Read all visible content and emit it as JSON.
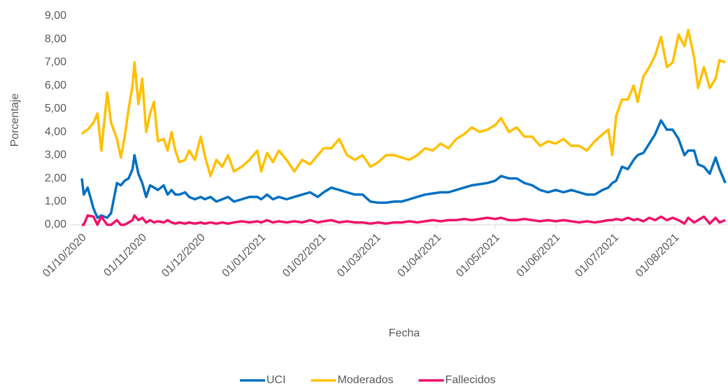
{
  "chart_data": {
    "type": "line",
    "x_label": "Fecha",
    "y_label": "Porcentaje",
    "x": [
      "01/10/2020",
      "02/10/2020",
      "04/10/2020",
      "07/10/2020",
      "09/10/2020",
      "11/10/2020",
      "14/10/2020",
      "16/10/2020",
      "19/10/2020",
      "21/10/2020",
      "23/10/2020",
      "25/10/2020",
      "27/10/2020",
      "28/10/2020",
      "30/10/2020",
      "01/11/2020",
      "03/11/2020",
      "05/11/2020",
      "07/11/2020",
      "09/11/2020",
      "12/11/2020",
      "14/11/2020",
      "16/11/2020",
      "18/11/2020",
      "20/11/2020",
      "23/11/2020",
      "25/11/2020",
      "28/11/2020",
      "01/12/2020",
      "03/12/2020",
      "06/12/2020",
      "09/12/2020",
      "12/12/2020",
      "15/12/2020",
      "18/12/2020",
      "22/12/2020",
      "26/12/2020",
      "30/12/2020",
      "01/01/2021",
      "04/01/2021",
      "07/01/2021",
      "10/01/2021",
      "14/01/2021",
      "18/01/2021",
      "22/01/2021",
      "26/01/2021",
      "30/01/2021",
      "02/02/2021",
      "06/02/2021",
      "10/02/2021",
      "14/02/2021",
      "18/02/2021",
      "22/02/2021",
      "26/02/2021",
      "02/03/2021",
      "06/03/2021",
      "10/03/2021",
      "14/03/2021",
      "18/03/2021",
      "22/03/2021",
      "26/03/2021",
      "30/03/2021",
      "03/04/2021",
      "07/04/2021",
      "11/04/2021",
      "15/04/2021",
      "19/04/2021",
      "23/04/2021",
      "27/04/2021",
      "01/05/2021",
      "04/05/2021",
      "08/05/2021",
      "12/05/2021",
      "16/05/2021",
      "20/05/2021",
      "24/05/2021",
      "28/05/2021",
      "01/06/2021",
      "05/06/2021",
      "09/06/2021",
      "13/06/2021",
      "17/06/2021",
      "21/06/2021",
      "25/06/2021",
      "28/06/2021",
      "30/06/2021",
      "02/07/2021",
      "05/07/2021",
      "08/07/2021",
      "11/07/2021",
      "13/07/2021",
      "16/07/2021",
      "19/07/2021",
      "22/07/2021",
      "25/07/2021",
      "28/07/2021",
      "31/07/2021",
      "03/08/2021",
      "06/08/2021",
      "08/08/2021",
      "11/08/2021",
      "13/08/2021",
      "16/08/2021",
      "19/08/2021",
      "22/08/2021",
      "24/08/2021",
      "27/08/2021"
    ],
    "series": [
      {
        "name": "UCI",
        "color": "#0070c0",
        "values": [
          2.0,
          1.3,
          1.6,
          0.7,
          0.3,
          0.4,
          0.3,
          0.5,
          1.8,
          1.7,
          1.9,
          2.0,
          2.4,
          3.0,
          2.2,
          1.8,
          1.2,
          1.7,
          1.6,
          1.5,
          1.7,
          1.3,
          1.5,
          1.3,
          1.3,
          1.4,
          1.2,
          1.1,
          1.2,
          1.1,
          1.2,
          1.0,
          1.1,
          1.2,
          1.0,
          1.1,
          1.2,
          1.2,
          1.1,
          1.3,
          1.1,
          1.2,
          1.1,
          1.2,
          1.3,
          1.4,
          1.2,
          1.4,
          1.6,
          1.5,
          1.4,
          1.3,
          1.3,
          1.0,
          0.95,
          0.95,
          1.0,
          1.0,
          1.1,
          1.2,
          1.3,
          1.35,
          1.4,
          1.4,
          1.5,
          1.6,
          1.7,
          1.75,
          1.8,
          1.9,
          2.1,
          2.0,
          2.0,
          1.8,
          1.7,
          1.5,
          1.4,
          1.5,
          1.4,
          1.5,
          1.4,
          1.3,
          1.3,
          1.5,
          1.6,
          1.8,
          1.9,
          2.5,
          2.4,
          2.8,
          3.0,
          3.1,
          3.5,
          3.9,
          4.5,
          4.1,
          4.1,
          3.7,
          3.0,
          3.2,
          3.2,
          2.6,
          2.5,
          2.2,
          2.9,
          2.4,
          1.8
        ]
      },
      {
        "name": "Moderados",
        "color": "#ffc000",
        "values": [
          3.9,
          4.0,
          4.1,
          4.4,
          4.8,
          3.2,
          5.7,
          4.4,
          3.7,
          2.9,
          3.8,
          5.0,
          6.0,
          7.0,
          5.2,
          6.3,
          4.0,
          4.8,
          5.3,
          3.6,
          3.7,
          3.2,
          4.0,
          3.2,
          2.7,
          2.8,
          3.2,
          2.8,
          3.8,
          3.0,
          2.1,
          2.8,
          2.5,
          3.0,
          2.3,
          2.5,
          2.8,
          3.2,
          2.3,
          3.1,
          2.7,
          3.2,
          2.8,
          2.3,
          2.8,
          2.6,
          3.0,
          3.3,
          3.3,
          3.7,
          3.0,
          2.8,
          3.0,
          2.5,
          2.7,
          3.0,
          3.0,
          2.9,
          2.8,
          3.0,
          3.3,
          3.2,
          3.5,
          3.3,
          3.7,
          3.9,
          4.2,
          4.0,
          4.1,
          4.3,
          4.6,
          4.0,
          4.2,
          3.8,
          3.8,
          3.4,
          3.6,
          3.5,
          3.7,
          3.4,
          3.4,
          3.2,
          3.6,
          3.9,
          4.1,
          3.0,
          4.7,
          5.4,
          5.4,
          6.0,
          5.3,
          6.4,
          6.8,
          7.3,
          8.1,
          6.8,
          7.0,
          8.2,
          7.7,
          8.4,
          7.2,
          5.9,
          6.8,
          5.9,
          6.3,
          7.1,
          7.0
        ]
      },
      {
        "name": "Fallecidos",
        "color": "#f0106a",
        "values": [
          0,
          0,
          0.4,
          0.35,
          0,
          0.35,
          0,
          0,
          0.2,
          0,
          0,
          0.1,
          0.2,
          0.4,
          0.2,
          0.3,
          0.1,
          0.2,
          0.1,
          0.15,
          0.1,
          0.2,
          0.1,
          0.05,
          0.1,
          0.05,
          0.1,
          0.05,
          0.1,
          0.05,
          0.1,
          0.05,
          0.1,
          0.05,
          0.1,
          0.15,
          0.1,
          0.15,
          0.1,
          0.2,
          0.1,
          0.15,
          0.1,
          0.15,
          0.1,
          0.2,
          0.1,
          0.15,
          0.2,
          0.1,
          0.15,
          0.1,
          0.1,
          0.05,
          0.1,
          0.05,
          0.1,
          0.1,
          0.15,
          0.1,
          0.15,
          0.2,
          0.15,
          0.2,
          0.2,
          0.25,
          0.2,
          0.25,
          0.3,
          0.25,
          0.3,
          0.2,
          0.2,
          0.25,
          0.2,
          0.15,
          0.2,
          0.15,
          0.2,
          0.15,
          0.1,
          0.15,
          0.1,
          0.15,
          0.2,
          0.2,
          0.25,
          0.2,
          0.3,
          0.2,
          0.25,
          0.15,
          0.3,
          0.2,
          0.35,
          0.2,
          0.3,
          0.2,
          0.05,
          0.3,
          0.1,
          0.2,
          0.35,
          0.05,
          0.3,
          0.1,
          0.2
        ]
      }
    ],
    "xlim": [
      "01/10/2020",
      "28/08/2021"
    ],
    "xticks": [
      "01/10/2020",
      "01/11/2020",
      "01/12/2020",
      "01/01/2021",
      "01/02/2021",
      "01/03/2021",
      "01/04/2021",
      "01/05/2021",
      "01/06/2021",
      "01/07/2021",
      "01/08/2021"
    ],
    "ylim": [
      0,
      9
    ],
    "yticks": [
      {
        "value": 0,
        "label": "0,00"
      },
      {
        "value": 1,
        "label": "1,00"
      },
      {
        "value": 2,
        "label": "2,00"
      },
      {
        "value": 3,
        "label": "3,00"
      },
      {
        "value": 4,
        "label": "4,00"
      },
      {
        "value": 5,
        "label": "5,00"
      },
      {
        "value": 6,
        "label": "6,00"
      },
      {
        "value": 7,
        "label": "7,00"
      },
      {
        "value": 8,
        "label": "8,00"
      },
      {
        "value": 9,
        "label": "9,00"
      }
    ],
    "grid": false,
    "legend": "bottom"
  }
}
